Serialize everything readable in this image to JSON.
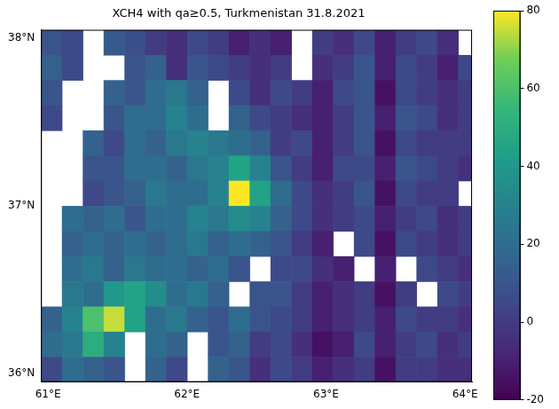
{
  "chart_data": {
    "type": "heatmap",
    "title": "XCH4 with qa≥0.5, Turkmenistan 31.8.2021",
    "x": [
      61.025,
      61.175,
      61.325,
      61.475,
      61.625,
      61.775,
      61.925,
      62.075,
      62.225,
      62.375,
      62.525,
      62.675,
      62.825,
      62.975,
      63.125,
      63.275,
      63.425,
      63.575,
      63.725,
      63.875,
      64.025
    ],
    "y": [
      37.975,
      37.825,
      37.675,
      37.525,
      37.375,
      37.225,
      37.075,
      36.925,
      36.775,
      36.625,
      36.475,
      36.325,
      36.175,
      36.025
    ],
    "cells": [
      [
        10,
        5,
        null,
        12,
        8,
        0,
        -5,
        5,
        0,
        -10,
        -5,
        -10,
        null,
        0,
        -5,
        5,
        -10,
        0,
        5,
        -5,
        null
      ],
      [
        15,
        5,
        null,
        null,
        10,
        15,
        -5,
        10,
        5,
        0,
        -5,
        0,
        null,
        -5,
        0,
        10,
        -10,
        5,
        0,
        -10,
        5
      ],
      [
        10,
        null,
        null,
        15,
        10,
        20,
        25,
        15,
        null,
        5,
        -5,
        5,
        0,
        -10,
        5,
        10,
        -15,
        5,
        0,
        -5,
        0
      ],
      [
        5,
        null,
        null,
        10,
        20,
        20,
        30,
        20,
        null,
        15,
        5,
        0,
        -5,
        -10,
        0,
        10,
        -10,
        10,
        5,
        -5,
        0
      ],
      [
        null,
        null,
        15,
        5,
        20,
        15,
        25,
        30,
        25,
        20,
        15,
        0,
        5,
        -10,
        0,
        10,
        -15,
        5,
        0,
        0,
        0
      ],
      [
        null,
        null,
        10,
        10,
        20,
        20,
        15,
        25,
        30,
        45,
        30,
        10,
        0,
        -10,
        5,
        5,
        -10,
        10,
        5,
        0,
        -5
      ],
      [
        null,
        null,
        5,
        10,
        15,
        25,
        20,
        20,
        30,
        80,
        45,
        20,
        5,
        -5,
        0,
        10,
        -15,
        5,
        0,
        0,
        null
      ],
      [
        null,
        20,
        15,
        20,
        10,
        20,
        20,
        30,
        25,
        35,
        30,
        15,
        5,
        -5,
        0,
        5,
        -10,
        0,
        5,
        -5,
        0
      ],
      [
        null,
        15,
        20,
        15,
        20,
        15,
        20,
        25,
        15,
        20,
        15,
        10,
        0,
        -10,
        null,
        5,
        -15,
        5,
        0,
        -5,
        0
      ],
      [
        null,
        20,
        25,
        15,
        25,
        20,
        20,
        15,
        20,
        10,
        null,
        5,
        5,
        -5,
        -10,
        null,
        -10,
        null,
        5,
        0,
        -5
      ],
      [
        null,
        25,
        20,
        40,
        45,
        35,
        20,
        25,
        15,
        null,
        10,
        10,
        0,
        -10,
        -5,
        0,
        -15,
        0,
        null,
        5,
        0
      ],
      [
        15,
        30,
        60,
        75,
        45,
        20,
        25,
        15,
        10,
        20,
        10,
        5,
        0,
        -10,
        -5,
        0,
        -10,
        5,
        0,
        0,
        -5
      ],
      [
        20,
        25,
        50,
        30,
        null,
        20,
        15,
        null,
        10,
        15,
        0,
        5,
        -5,
        -15,
        -10,
        5,
        -10,
        0,
        5,
        -5,
        0
      ],
      [
        5,
        20,
        15,
        10,
        null,
        15,
        5,
        null,
        15,
        10,
        -5,
        5,
        0,
        -10,
        -5,
        0,
        -15,
        0,
        0,
        -5,
        -5
      ]
    ],
    "xlim": [
      60.95,
      64.05
    ],
    "ylim": [
      35.95,
      38.05
    ],
    "xticks": [
      {
        "value": 61,
        "label": "61°E"
      },
      {
        "value": 62,
        "label": "62°E"
      },
      {
        "value": 63,
        "label": "63°E"
      },
      {
        "value": 64,
        "label": "64°E"
      }
    ],
    "yticks": [
      {
        "value": 36,
        "label": "36°N"
      },
      {
        "value": 37,
        "label": "37°N"
      },
      {
        "value": 38,
        "label": "38°N"
      }
    ],
    "color_range": [
      -20,
      80
    ],
    "color_ticks": [
      -20,
      0,
      20,
      40,
      60,
      80
    ],
    "grid": false
  }
}
